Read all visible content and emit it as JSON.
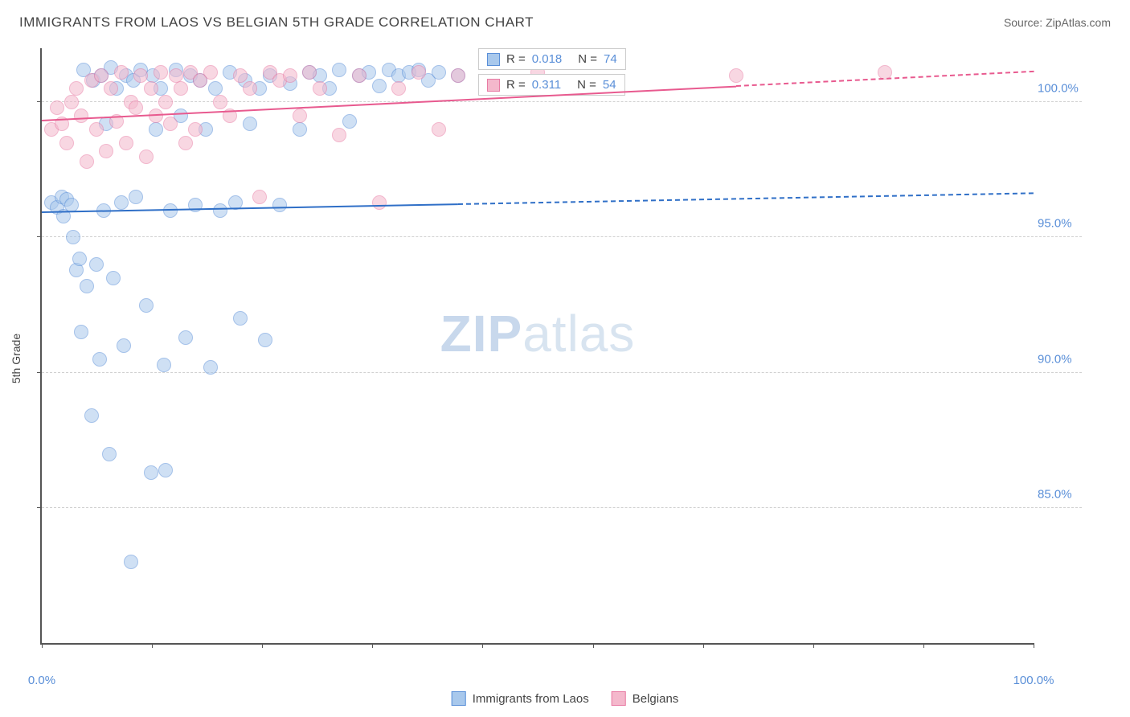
{
  "title": "IMMIGRANTS FROM LAOS VS BELGIAN 5TH GRADE CORRELATION CHART",
  "source": "Source: ZipAtlas.com",
  "y_axis_label": "5th Grade",
  "watermark_a": "ZIP",
  "watermark_b": "atlas",
  "chart": {
    "type": "scatter",
    "xlim": [
      0,
      100
    ],
    "ylim": [
      80,
      102
    ],
    "x_ticks": [
      0,
      11.1,
      22.2,
      33.3,
      44.4,
      55.6,
      66.7,
      77.8,
      88.9,
      100
    ],
    "x_tick_labels": {
      "0": "0.0%",
      "100": "100.0%"
    },
    "y_ticks": [
      85,
      90,
      95,
      100
    ],
    "y_tick_labels": {
      "85": "85.0%",
      "90": "90.0%",
      "95": "95.0%",
      "100": "100.0%"
    },
    "grid_color": "#d0d0d0",
    "background_color": "#ffffff",
    "point_radius": 9,
    "point_opacity": 0.55,
    "series": [
      {
        "name": "Immigrants from Laos",
        "label": "Immigrants from Laos",
        "fill": "#a8c8ec",
        "stroke": "#5a8fd8",
        "R": "0.018",
        "N": "74",
        "trend": {
          "y_start": 95.9,
          "y_end": 96.6,
          "solid_until_x": 42,
          "color": "#2f6fc7"
        },
        "points": [
          [
            1,
            96.3
          ],
          [
            1.5,
            96.1
          ],
          [
            2,
            96.5
          ],
          [
            2.2,
            95.8
          ],
          [
            2.5,
            96.4
          ],
          [
            3,
            96.2
          ],
          [
            3.2,
            95.0
          ],
          [
            3.5,
            93.8
          ],
          [
            3.8,
            94.2
          ],
          [
            4,
            91.5
          ],
          [
            4.2,
            101.2
          ],
          [
            4.5,
            93.2
          ],
          [
            5,
            88.4
          ],
          [
            5.2,
            100.8
          ],
          [
            5.5,
            94.0
          ],
          [
            5.8,
            90.5
          ],
          [
            6,
            101.0
          ],
          [
            6.2,
            96.0
          ],
          [
            6.5,
            99.2
          ],
          [
            6.8,
            87.0
          ],
          [
            7,
            101.3
          ],
          [
            7.2,
            93.5
          ],
          [
            7.5,
            100.5
          ],
          [
            8,
            96.3
          ],
          [
            8.3,
            91.0
          ],
          [
            8.5,
            101.0
          ],
          [
            9,
            83.0
          ],
          [
            9.2,
            100.8
          ],
          [
            9.5,
            96.5
          ],
          [
            10,
            101.2
          ],
          [
            10.5,
            92.5
          ],
          [
            11,
            86.3
          ],
          [
            11.2,
            101.0
          ],
          [
            11.5,
            99.0
          ],
          [
            12,
            100.5
          ],
          [
            12.3,
            90.3
          ],
          [
            12.5,
            86.4
          ],
          [
            13,
            96.0
          ],
          [
            13.5,
            101.2
          ],
          [
            14,
            99.5
          ],
          [
            14.5,
            91.3
          ],
          [
            15,
            101.0
          ],
          [
            15.5,
            96.2
          ],
          [
            16,
            100.8
          ],
          [
            16.5,
            99.0
          ],
          [
            17,
            90.2
          ],
          [
            17.5,
            100.5
          ],
          [
            18,
            96.0
          ],
          [
            19,
            101.1
          ],
          [
            19.5,
            96.3
          ],
          [
            20,
            92.0
          ],
          [
            20.5,
            100.8
          ],
          [
            21,
            99.2
          ],
          [
            22,
            100.5
          ],
          [
            22.5,
            91.2
          ],
          [
            23,
            101.0
          ],
          [
            24,
            96.2
          ],
          [
            25,
            100.7
          ],
          [
            26,
            99.0
          ],
          [
            27,
            101.1
          ],
          [
            28,
            101.0
          ],
          [
            29,
            100.5
          ],
          [
            30,
            101.2
          ],
          [
            31,
            99.3
          ],
          [
            32,
            101.0
          ],
          [
            33,
            101.1
          ],
          [
            34,
            100.6
          ],
          [
            35,
            101.2
          ],
          [
            36,
            101.0
          ],
          [
            37,
            101.1
          ],
          [
            38,
            101.2
          ],
          [
            39,
            100.8
          ],
          [
            40,
            101.1
          ],
          [
            42,
            101.0
          ]
        ]
      },
      {
        "name": "Belgians",
        "label": "Belgians",
        "fill": "#f4b8cc",
        "stroke": "#e87ba4",
        "R": "0.311",
        "N": "54",
        "trend": {
          "y_start": 99.3,
          "y_end": 101.1,
          "solid_until_x": 70,
          "color": "#e85a8f"
        },
        "points": [
          [
            1,
            99.0
          ],
          [
            1.5,
            99.8
          ],
          [
            2,
            99.2
          ],
          [
            2.5,
            98.5
          ],
          [
            3,
            100.0
          ],
          [
            3.5,
            100.5
          ],
          [
            4,
            99.5
          ],
          [
            4.5,
            97.8
          ],
          [
            5,
            100.8
          ],
          [
            5.5,
            99.0
          ],
          [
            6,
            101.0
          ],
          [
            6.5,
            98.2
          ],
          [
            7,
            100.5
          ],
          [
            7.5,
            99.3
          ],
          [
            8,
            101.1
          ],
          [
            8.5,
            98.5
          ],
          [
            9,
            100.0
          ],
          [
            9.5,
            99.8
          ],
          [
            10,
            101.0
          ],
          [
            10.5,
            98.0
          ],
          [
            11,
            100.5
          ],
          [
            11.5,
            99.5
          ],
          [
            12,
            101.1
          ],
          [
            12.5,
            100.0
          ],
          [
            13,
            99.2
          ],
          [
            13.5,
            101.0
          ],
          [
            14,
            100.5
          ],
          [
            14.5,
            98.5
          ],
          [
            15,
            101.1
          ],
          [
            15.5,
            99.0
          ],
          [
            16,
            100.8
          ],
          [
            17,
            101.1
          ],
          [
            18,
            100.0
          ],
          [
            19,
            99.5
          ],
          [
            20,
            101.0
          ],
          [
            21,
            100.5
          ],
          [
            22,
            96.5
          ],
          [
            23,
            101.1
          ],
          [
            24,
            100.8
          ],
          [
            25,
            101.0
          ],
          [
            26,
            99.5
          ],
          [
            27,
            101.1
          ],
          [
            28,
            100.5
          ],
          [
            30,
            98.8
          ],
          [
            32,
            101.0
          ],
          [
            34,
            96.3
          ],
          [
            36,
            100.5
          ],
          [
            38,
            101.1
          ],
          [
            40,
            99.0
          ],
          [
            42,
            101.0
          ],
          [
            45,
            100.5
          ],
          [
            50,
            101.1
          ],
          [
            70,
            101.0
          ],
          [
            85,
            101.1
          ]
        ]
      }
    ]
  },
  "stat_box": {
    "r_label": "R =",
    "n_label": "N ="
  },
  "colors": {
    "axis_text": "#5a8fd8",
    "title_text": "#444444"
  }
}
